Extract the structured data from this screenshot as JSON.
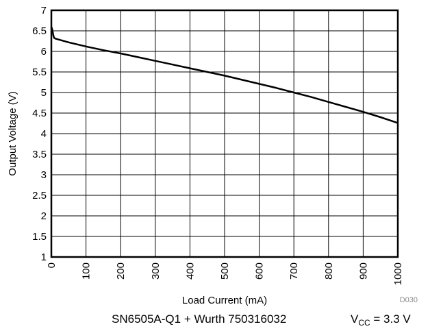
{
  "chart_data": {
    "type": "line",
    "xlabel": "Load Current (mA)",
    "ylabel": "Output Voltage (V)",
    "xlim": [
      0,
      1000
    ],
    "ylim": [
      1,
      7
    ],
    "x_ticks": [
      0,
      100,
      200,
      300,
      400,
      500,
      600,
      700,
      800,
      900,
      1000
    ],
    "y_ticks": [
      1,
      1.5,
      2,
      2.5,
      3,
      3.5,
      4,
      4.5,
      5,
      5.5,
      6,
      6.5,
      7
    ],
    "grid": true,
    "series": [
      {
        "color": "#000000",
        "x": [
          0,
          2,
          4,
          6,
          8,
          12,
          20,
          50,
          100,
          150,
          200,
          250,
          300,
          350,
          400,
          450,
          500,
          550,
          600,
          650,
          700,
          750,
          800,
          850,
          900,
          950,
          1000
        ],
        "y": [
          6.6,
          6.55,
          6.47,
          6.38,
          6.33,
          6.31,
          6.29,
          6.22,
          6.12,
          6.03,
          5.95,
          5.86,
          5.77,
          5.68,
          5.59,
          5.5,
          5.41,
          5.31,
          5.21,
          5.11,
          5.0,
          4.89,
          4.77,
          4.65,
          4.53,
          4.4,
          4.26
        ]
      }
    ]
  },
  "figure_id": "D030",
  "caption": {
    "device": "SN6505A-Q1 + Wurth 750316032",
    "condition_prefix": "V",
    "condition_sub": "CC",
    "condition_suffix": " = 3.3 V"
  }
}
